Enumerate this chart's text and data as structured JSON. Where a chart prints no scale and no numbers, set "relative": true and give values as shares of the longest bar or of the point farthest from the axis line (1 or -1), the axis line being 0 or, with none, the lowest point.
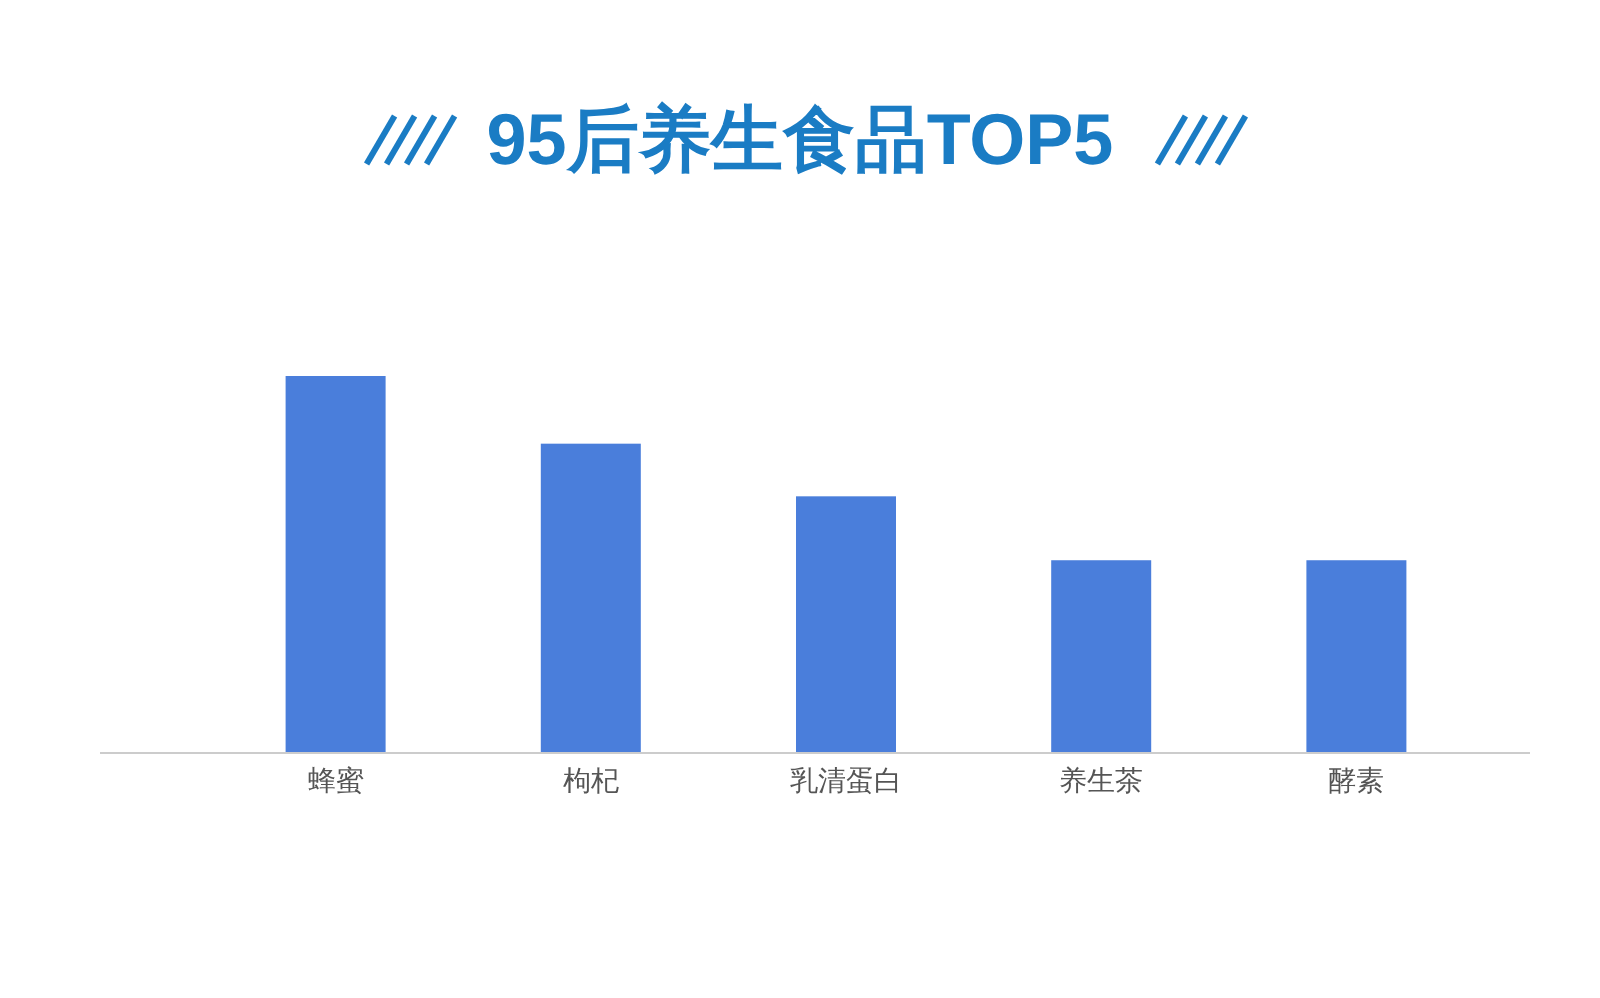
{
  "chart_data": {
    "type": "bar",
    "title": "95后养生食品TOP5",
    "categories": [
      "蜂蜜",
      "枸杞",
      "乳清蛋白",
      "养生茶",
      "酵素"
    ],
    "values": [
      1,
      0.82,
      0.68,
      0.51,
      0.51
    ],
    "color": "#4a7edb",
    "relative": true
  }
}
